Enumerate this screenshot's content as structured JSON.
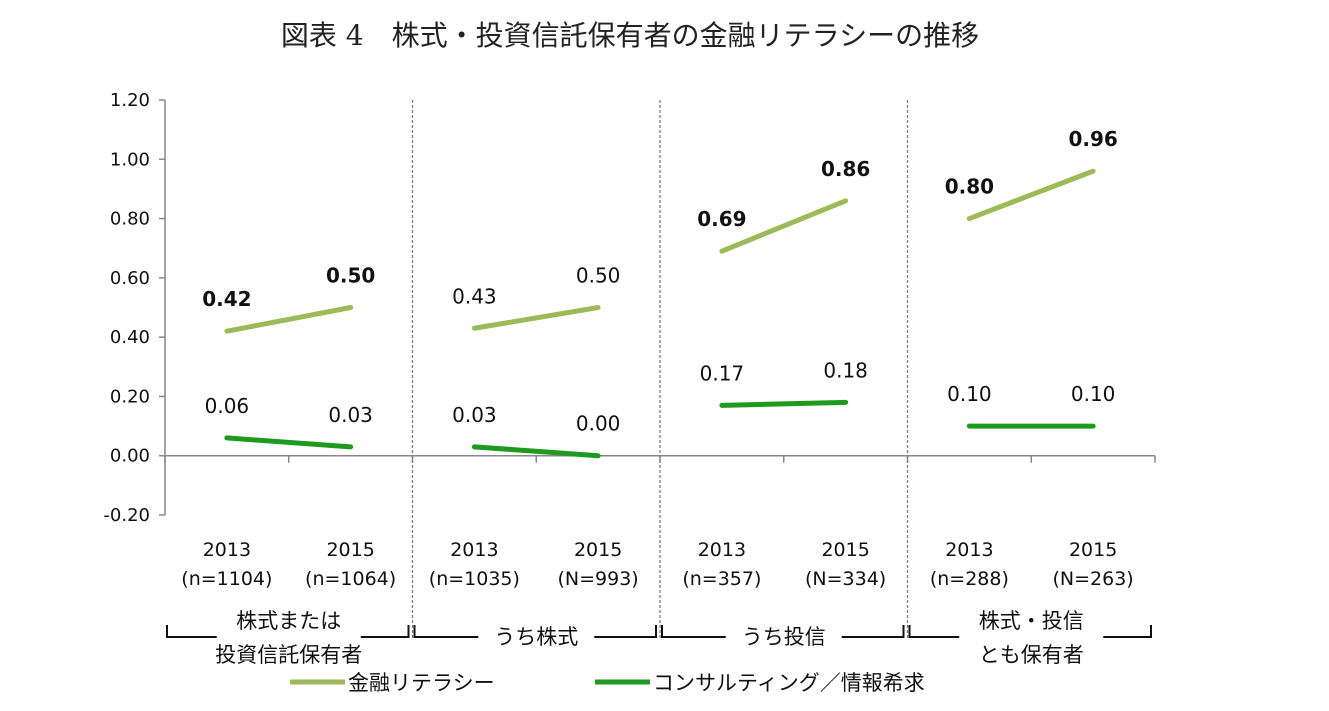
{
  "title": "図表 4　株式・投資信託保有者の金融リテラシーの推移",
  "chart_data": {
    "type": "line",
    "title": "図表 4　株式・投資信託保有者の金融リテラシーの推移",
    "ylim": [
      -0.2,
      1.2
    ],
    "yticks": [
      "1.20",
      "1.00",
      "0.80",
      "0.60",
      "0.40",
      "0.20",
      "0.00",
      "-0.20"
    ],
    "grid": false,
    "legend_position": "bottom",
    "groups": [
      {
        "label_lines": [
          "株式または",
          "投資信託保有者"
        ],
        "categories": [
          {
            "year": "2013",
            "n": "(n=1104)"
          },
          {
            "year": "2015",
            "n": "(n=1064)"
          }
        ]
      },
      {
        "label_lines": [
          "うち株式"
        ],
        "categories": [
          {
            "year": "2013",
            "n": "(n=1035)"
          },
          {
            "year": "2015",
            "n": "(N=993)"
          }
        ]
      },
      {
        "label_lines": [
          "うち投信"
        ],
        "categories": [
          {
            "year": "2013",
            "n": "(n=357)"
          },
          {
            "year": "2015",
            "n": "(N=334)"
          }
        ]
      },
      {
        "label_lines": [
          "株式・投信",
          "とも保有者"
        ],
        "categories": [
          {
            "year": "2013",
            "n": "(n=288)"
          },
          {
            "year": "2015",
            "n": "(N=263)"
          }
        ]
      }
    ],
    "series": [
      {
        "name": "金融リテラシー",
        "color": "#9BBB59",
        "values": [
          [
            0.42,
            0.5
          ],
          [
            0.43,
            0.5
          ],
          [
            0.69,
            0.86
          ],
          [
            0.8,
            0.96
          ]
        ],
        "labels": [
          [
            "0.42",
            "0.50"
          ],
          [
            "0.43",
            "0.50"
          ],
          [
            "0.69",
            "0.86"
          ],
          [
            "0.80",
            "0.96"
          ]
        ],
        "bold_groups": [
          true,
          false,
          true,
          true
        ]
      },
      {
        "name": "コンサルティング／情報希求",
        "color": "#1E9A1E",
        "values": [
          [
            0.06,
            0.03
          ],
          [
            0.03,
            0.0
          ],
          [
            0.17,
            0.18
          ],
          [
            0.1,
            0.1
          ]
        ],
        "labels": [
          [
            "0.06",
            "0.03"
          ],
          [
            "0.03",
            "0.00"
          ],
          [
            "0.17",
            "0.18"
          ],
          [
            "0.10",
            "0.10"
          ]
        ],
        "bold_groups": [
          false,
          false,
          false,
          false
        ]
      }
    ]
  }
}
